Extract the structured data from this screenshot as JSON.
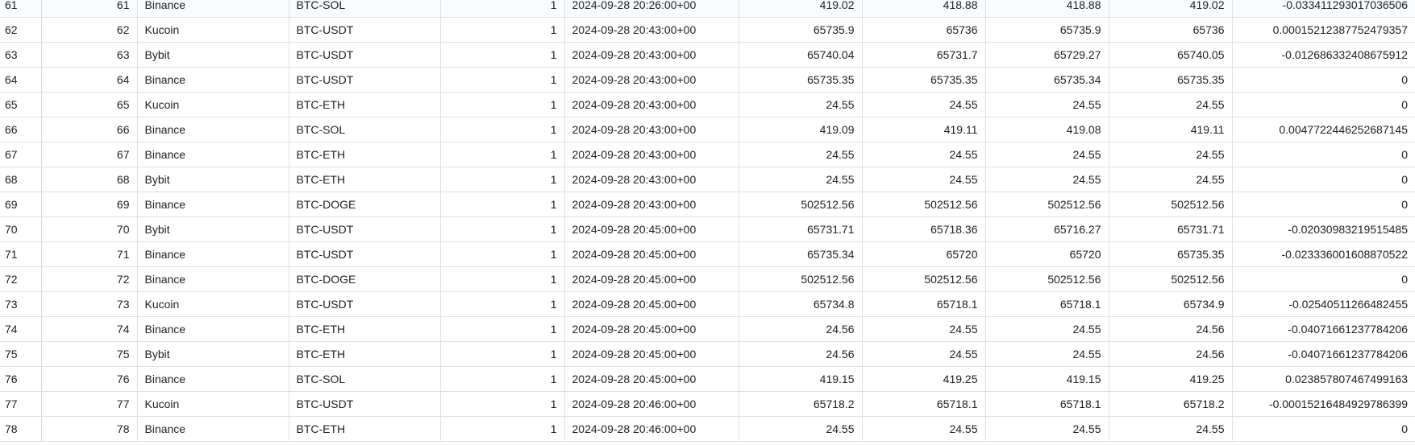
{
  "table": {
    "rows": [
      [
        "61",
        "61",
        "Binance",
        "BTC-SOL",
        "1",
        "2024-09-28 20:26:00+00",
        "419.02",
        "418.88",
        "418.88",
        "419.02",
        "-0.033411293017036506"
      ],
      [
        "62",
        "62",
        "Kucoin",
        "BTC-USDT",
        "1",
        "2024-09-28 20:43:00+00",
        "65735.9",
        "65736",
        "65735.9",
        "65736",
        "0.00015212387752479357"
      ],
      [
        "63",
        "63",
        "Bybit",
        "BTC-USDT",
        "1",
        "2024-09-28 20:43:00+00",
        "65740.04",
        "65731.7",
        "65729.27",
        "65740.05",
        "-0.012686332408675912"
      ],
      [
        "64",
        "64",
        "Binance",
        "BTC-USDT",
        "1",
        "2024-09-28 20:43:00+00",
        "65735.35",
        "65735.35",
        "65735.34",
        "65735.35",
        "0"
      ],
      [
        "65",
        "65",
        "Kucoin",
        "BTC-ETH",
        "1",
        "2024-09-28 20:43:00+00",
        "24.55",
        "24.55",
        "24.55",
        "24.55",
        "0"
      ],
      [
        "66",
        "66",
        "Binance",
        "BTC-SOL",
        "1",
        "2024-09-28 20:43:00+00",
        "419.09",
        "419.11",
        "419.08",
        "419.11",
        "0.0047722446252687145"
      ],
      [
        "67",
        "67",
        "Binance",
        "BTC-ETH",
        "1",
        "2024-09-28 20:43:00+00",
        "24.55",
        "24.55",
        "24.55",
        "24.55",
        "0"
      ],
      [
        "68",
        "68",
        "Bybit",
        "BTC-ETH",
        "1",
        "2024-09-28 20:43:00+00",
        "24.55",
        "24.55",
        "24.55",
        "24.55",
        "0"
      ],
      [
        "69",
        "69",
        "Binance",
        "BTC-DOGE",
        "1",
        "2024-09-28 20:43:00+00",
        "502512.56",
        "502512.56",
        "502512.56",
        "502512.56",
        "0"
      ],
      [
        "70",
        "70",
        "Bybit",
        "BTC-USDT",
        "1",
        "2024-09-28 20:45:00+00",
        "65731.71",
        "65718.36",
        "65716.27",
        "65731.71",
        "-0.02030983219515485"
      ],
      [
        "71",
        "71",
        "Binance",
        "BTC-USDT",
        "1",
        "2024-09-28 20:45:00+00",
        "65735.34",
        "65720",
        "65720",
        "65735.35",
        "-0.023336001608870522"
      ],
      [
        "72",
        "72",
        "Binance",
        "BTC-DOGE",
        "1",
        "2024-09-28 20:45:00+00",
        "502512.56",
        "502512.56",
        "502512.56",
        "502512.56",
        "0"
      ],
      [
        "73",
        "73",
        "Kucoin",
        "BTC-USDT",
        "1",
        "2024-09-28 20:45:00+00",
        "65734.8",
        "65718.1",
        "65718.1",
        "65734.9",
        "-0.02540511266482455"
      ],
      [
        "74",
        "74",
        "Binance",
        "BTC-ETH",
        "1",
        "2024-09-28 20:45:00+00",
        "24.56",
        "24.55",
        "24.55",
        "24.56",
        "-0.04071661237784206"
      ],
      [
        "75",
        "75",
        "Bybit",
        "BTC-ETH",
        "1",
        "2024-09-28 20:45:00+00",
        "24.56",
        "24.55",
        "24.55",
        "24.56",
        "-0.04071661237784206"
      ],
      [
        "76",
        "76",
        "Binance",
        "BTC-SOL",
        "1",
        "2024-09-28 20:45:00+00",
        "419.15",
        "419.25",
        "419.15",
        "419.25",
        "0.023857807467499163"
      ],
      [
        "77",
        "77",
        "Kucoin",
        "BTC-USDT",
        "1",
        "2024-09-28 20:46:00+00",
        "65718.2",
        "65718.1",
        "65718.1",
        "65718.2",
        "-0.00015216484929786399"
      ],
      [
        "78",
        "78",
        "Binance",
        "BTC-ETH",
        "1",
        "2024-09-28 20:46:00+00",
        "24.55",
        "24.55",
        "24.55",
        "24.55",
        "0"
      ]
    ]
  }
}
